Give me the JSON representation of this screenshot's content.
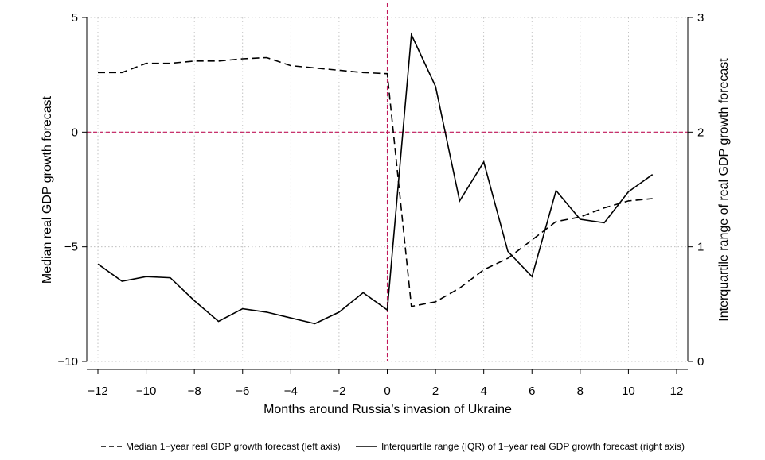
{
  "chart_data": {
    "type": "line",
    "xlabel": "Months around Russia’s invasion of Ukraine",
    "ylabel_left": "Median real GDP growth forecast",
    "ylabel_right": "Interquartile range of real GDP growth forecast",
    "xlim": [
      -12,
      12
    ],
    "ylim_left": [
      -10,
      5
    ],
    "ylim_right": [
      0,
      3
    ],
    "x_ticks": [
      -12,
      -10,
      -8,
      -6,
      -4,
      -2,
      0,
      2,
      4,
      6,
      8,
      10,
      12
    ],
    "x_tick_labels": [
      "−12",
      "−10",
      "−8",
      "−6",
      "−4",
      "−2",
      "0",
      "2",
      "4",
      "6",
      "8",
      "10",
      "12"
    ],
    "y_left_ticks": [
      5,
      0,
      -5,
      -10
    ],
    "y_left_tick_labels": [
      "5",
      "0",
      "−5",
      "−10"
    ],
    "y_right_ticks": [
      3,
      2,
      1,
      0
    ],
    "y_right_tick_labels": [
      "3",
      "2",
      "1",
      "0"
    ],
    "grid": true,
    "reference_lines": {
      "x": 0,
      "y_left": 0,
      "color": "#c2185b"
    },
    "legend_position": "bottom",
    "series": [
      {
        "name": "Median 1−year real GDP growth forecast (left axis)",
        "axis": "left",
        "style": "dashed",
        "x": [
          -12,
          -11,
          -10,
          -9,
          -8,
          -7,
          -6,
          -5,
          -4,
          -3,
          -2,
          -1,
          0,
          1,
          2,
          3,
          4,
          5,
          6,
          7,
          8,
          9,
          10,
          11
        ],
        "values": [
          2.6,
          2.6,
          3.0,
          3.0,
          3.1,
          3.1,
          3.2,
          3.25,
          2.9,
          2.8,
          2.7,
          2.6,
          2.55,
          -7.6,
          -7.4,
          -6.8,
          -6.0,
          -5.5,
          -4.7,
          -3.9,
          -3.7,
          -3.3,
          -3.0,
          -2.9
        ]
      },
      {
        "name": "Interquartile range (IQR) of 1−year real GDP growth forecast (right axis)",
        "axis": "right",
        "style": "solid",
        "x": [
          -12,
          -11,
          -10,
          -9,
          -8,
          -7,
          -6,
          -5,
          -4,
          -3,
          -2,
          -1,
          0,
          1,
          2,
          3,
          4,
          5,
          6,
          7,
          8,
          9,
          10,
          11
        ],
        "values": [
          0.85,
          0.7,
          0.74,
          0.73,
          0.53,
          0.35,
          0.46,
          0.43,
          0.38,
          0.33,
          0.43,
          0.6,
          0.45,
          2.85,
          2.4,
          1.4,
          1.74,
          0.96,
          0.74,
          1.49,
          1.24,
          1.21,
          1.48,
          1.63
        ]
      }
    ]
  }
}
